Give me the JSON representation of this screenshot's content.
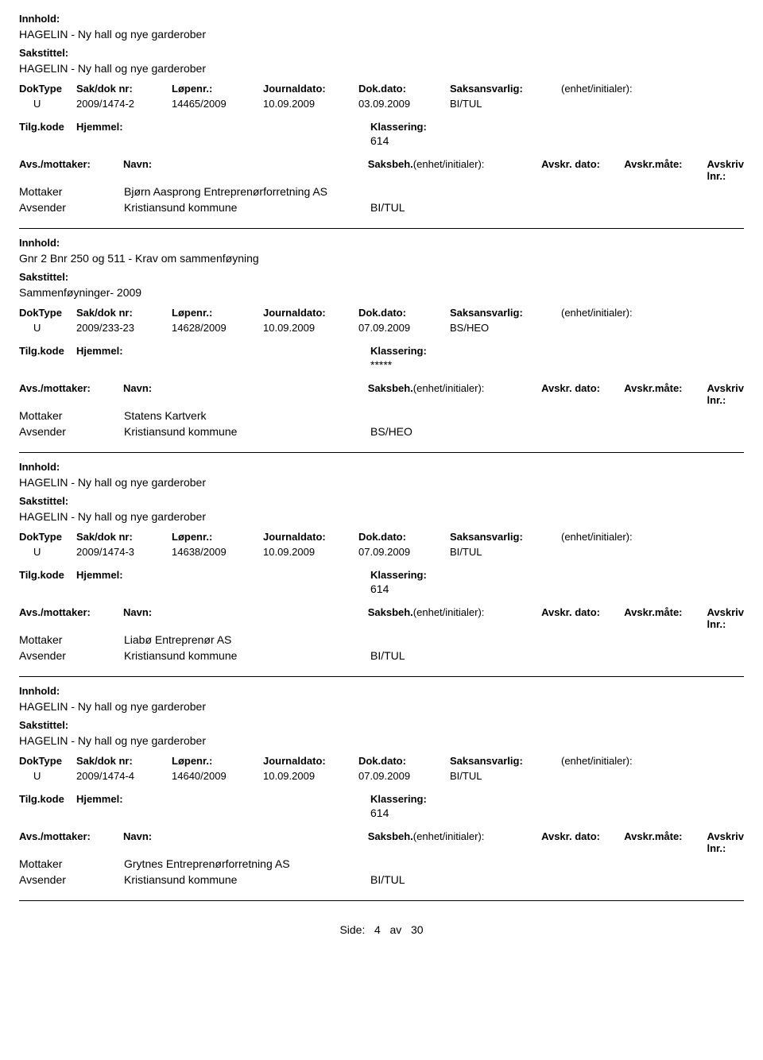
{
  "labels": {
    "innhold": "Innhold:",
    "sakstittel": "Sakstittel:",
    "doktype": "DokType",
    "sakdok": "Sak/dok nr:",
    "lopenr": "Løpenr.:",
    "journaldato": "Journaldato:",
    "dokdato": "Dok.dato:",
    "saksansvarlig": "Saksansvarlig:",
    "enhet": "(enhet/initialer):",
    "tilgkode": "Tilg.kode",
    "hjemmel": "Hjemmel:",
    "klassering": "Klassering:",
    "avsmottaker": "Avs./mottaker:",
    "navn": "Navn:",
    "saksbeh": "Saksbeh.",
    "saksbeh_enhet": "(enhet/initialer):",
    "avskrdato": "Avskr. dato:",
    "avskrmate": "Avskr.måte:",
    "avskrivlnr": "Avskriv lnr.:",
    "mottaker": "Mottaker",
    "avsender": "Avsender"
  },
  "records": [
    {
      "innhold": "HAGELIN - Ny hall og nye garderober",
      "sakstittel": "HAGELIN - Ny hall og nye garderober",
      "doktype": "U",
      "sakdok": "2009/1474-2",
      "lopenr": "14465/2009",
      "journaldato": "10.09.2009",
      "dokdato": "03.09.2009",
      "saksansvarlig": "BI/TUL",
      "enhet": "",
      "tilgkode": "",
      "hjemmel": "",
      "klassering": "614",
      "parties": [
        {
          "role": "Mottaker",
          "name": "Bjørn Aasprong Entreprenørforretning AS",
          "saksbeh": ""
        },
        {
          "role": "Avsender",
          "name": "Kristiansund kommune",
          "saksbeh": "BI/TUL"
        }
      ]
    },
    {
      "innhold": "Gnr 2 Bnr 250 og 511 - Krav om sammenføyning",
      "sakstittel": "Sammenføyninger- 2009",
      "doktype": "U",
      "sakdok": "2009/233-23",
      "lopenr": "14628/2009",
      "journaldato": "10.09.2009",
      "dokdato": "07.09.2009",
      "saksansvarlig": "BS/HEO",
      "enhet": "",
      "tilgkode": "",
      "hjemmel": "",
      "klassering": "*****",
      "parties": [
        {
          "role": "Mottaker",
          "name": "Statens Kartverk",
          "saksbeh": ""
        },
        {
          "role": "Avsender",
          "name": "Kristiansund kommune",
          "saksbeh": "BS/HEO"
        }
      ]
    },
    {
      "innhold": "HAGELIN - Ny hall og nye garderober",
      "sakstittel": "HAGELIN - Ny hall og nye garderober",
      "doktype": "U",
      "sakdok": "2009/1474-3",
      "lopenr": "14638/2009",
      "journaldato": "10.09.2009",
      "dokdato": "07.09.2009",
      "saksansvarlig": "BI/TUL",
      "enhet": "",
      "tilgkode": "",
      "hjemmel": "",
      "klassering": "614",
      "parties": [
        {
          "role": "Mottaker",
          "name": "Liabø Entreprenør AS",
          "saksbeh": ""
        },
        {
          "role": "Avsender",
          "name": "Kristiansund kommune",
          "saksbeh": "BI/TUL"
        }
      ]
    },
    {
      "innhold": "HAGELIN - Ny hall og nye garderober",
      "sakstittel": "HAGELIN - Ny hall og nye garderober",
      "doktype": "U",
      "sakdok": "2009/1474-4",
      "lopenr": "14640/2009",
      "journaldato": "10.09.2009",
      "dokdato": "07.09.2009",
      "saksansvarlig": "BI/TUL",
      "enhet": "",
      "tilgkode": "",
      "hjemmel": "",
      "klassering": "614",
      "parties": [
        {
          "role": "Mottaker",
          "name": "Grytnes Entreprenørforretning AS",
          "saksbeh": ""
        },
        {
          "role": "Avsender",
          "name": "Kristiansund kommune",
          "saksbeh": "BI/TUL"
        }
      ]
    }
  ],
  "footer": {
    "side": "Side:",
    "page": "4",
    "av": "av",
    "total": "30"
  }
}
